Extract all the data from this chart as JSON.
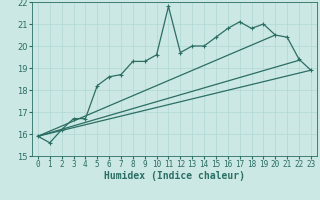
{
  "xlabel": "Humidex (Indice chaleur)",
  "ylabel": "",
  "background_color": "#cce8e4",
  "grid_color": "#b0d8d4",
  "line_color": "#2a6e64",
  "ylim": [
    15,
    22
  ],
  "xlim": [
    -0.5,
    23.5
  ],
  "yticks": [
    15,
    16,
    17,
    18,
    19,
    20,
    21,
    22
  ],
  "xticks": [
    0,
    1,
    2,
    3,
    4,
    5,
    6,
    7,
    8,
    9,
    10,
    11,
    12,
    13,
    14,
    15,
    16,
    17,
    18,
    19,
    20,
    21,
    22,
    23
  ],
  "series1_x": [
    0,
    1,
    2,
    3,
    4,
    5,
    6,
    7,
    8,
    9,
    10,
    11,
    12,
    13,
    14,
    15,
    16,
    17,
    18,
    19,
    20,
    21,
    22,
    23
  ],
  "series1_y": [
    15.9,
    15.6,
    16.2,
    16.7,
    16.7,
    18.2,
    18.6,
    18.7,
    19.3,
    19.3,
    19.6,
    21.8,
    19.7,
    20.0,
    20.0,
    20.4,
    20.8,
    21.1,
    20.8,
    21.0,
    20.5,
    20.4,
    19.4,
    18.9
  ],
  "series2_x": [
    0,
    23
  ],
  "series2_y": [
    15.9,
    18.9
  ],
  "series3_x": [
    0,
    20
  ],
  "series3_y": [
    15.9,
    20.5
  ],
  "series4_x": [
    0,
    22
  ],
  "series4_y": [
    15.9,
    19.35
  ]
}
